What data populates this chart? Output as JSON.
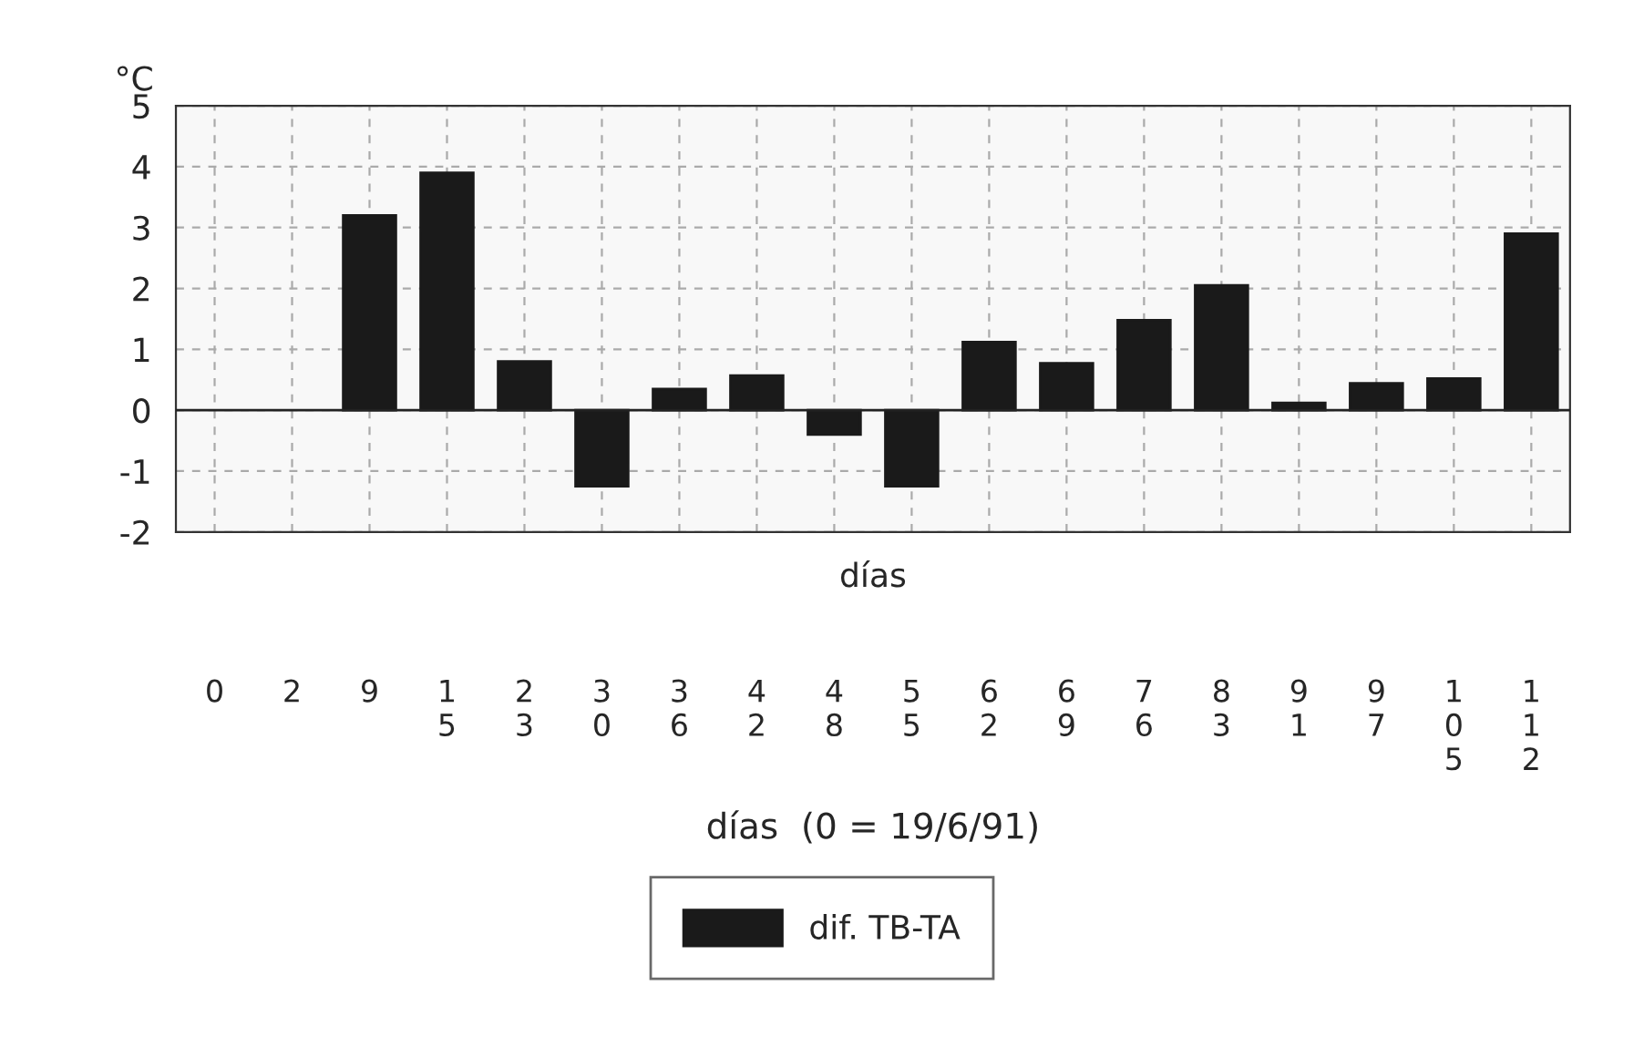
{
  "chart_data": {
    "type": "bar",
    "categories": [
      "0",
      "2",
      "9",
      "15",
      "23",
      "30",
      "36",
      "42",
      "48",
      "55",
      "62",
      "69",
      "76",
      "83",
      "91",
      "97",
      "105",
      "112"
    ],
    "series": [
      {
        "name": "dif. TB-TA",
        "color": "#1a1a1a",
        "values": [
          null,
          null,
          3.2,
          3.9,
          0.8,
          -1.25,
          0.35,
          0.57,
          -0.4,
          -1.25,
          1.12,
          0.77,
          1.48,
          2.05,
          0.12,
          0.44,
          0.52,
          2.9
        ]
      }
    ],
    "ylabel": "°C",
    "xlabel": "días  (0 = 19/6/91)",
    "annotations": [
      "días"
    ],
    "ylim": [
      -2,
      5
    ],
    "yticks": [
      -2,
      -1,
      0,
      1,
      2,
      3,
      4,
      5
    ],
    "grid": true,
    "legend": "bottom"
  }
}
